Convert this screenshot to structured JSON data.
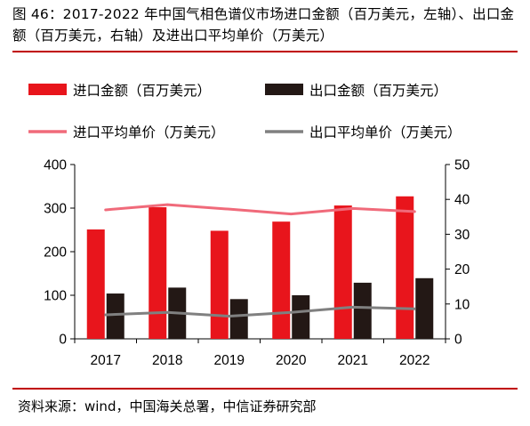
{
  "figure": {
    "title": "图 46：2017-2022 年中国气相色谱仪市场进口金额（百万美元，左轴）、出口金额（百万美元，右轴）及进出口平均单价（万美元）",
    "source": "资料来源：wind，中国海关总署，中信证券研究部"
  },
  "colors": {
    "import_bar": "#e8151c",
    "export_bar": "#231815",
    "import_price_line": "#f06a7a",
    "export_price_line": "#808080",
    "rule": "#c00000"
  },
  "chart_data": {
    "type": "bar",
    "categories": [
      "2017",
      "2018",
      "2019",
      "2020",
      "2021",
      "2022"
    ],
    "left_axis": {
      "ylim": [
        0,
        400
      ],
      "ticks": [
        "0",
        "100",
        "200",
        "300",
        "400"
      ]
    },
    "right_axis": {
      "ylim": [
        0,
        50
      ],
      "ticks": [
        "0",
        "10",
        "20",
        "30",
        "40",
        "50"
      ]
    },
    "series": [
      {
        "name": "进口金额（百万美元）",
        "kind": "bar",
        "axis": "left",
        "values": [
          251,
          302,
          248,
          269,
          306,
          327
        ]
      },
      {
        "name": "出口金额（百万美元）",
        "kind": "bar",
        "axis": "right",
        "values": [
          13.0,
          14.7,
          11.4,
          12.5,
          16.1,
          17.4
        ]
      },
      {
        "name": "进口平均单价（万美元）",
        "kind": "line",
        "axis": "right",
        "values": [
          37.0,
          38.5,
          37.2,
          35.8,
          37.4,
          36.5
        ]
      },
      {
        "name": "出口平均单价（万美元）",
        "kind": "line",
        "axis": "right",
        "values": [
          6.9,
          7.6,
          6.5,
          7.6,
          9.1,
          8.6
        ]
      }
    ],
    "legend_position": "top",
    "grid": false
  }
}
